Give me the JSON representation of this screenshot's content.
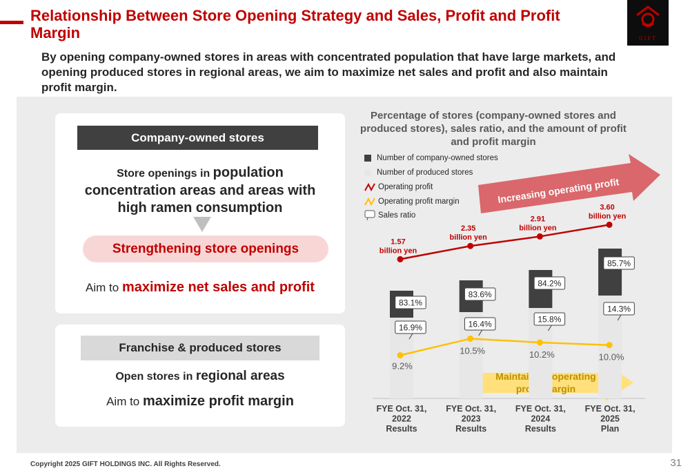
{
  "header": {
    "title": "Relationship Between Store Opening Strategy and Sales, Profit and Profit Margin",
    "subtitle": "By opening company-owned stores in areas with concentrated population that have large markets, and opening produced stores in regional areas, we aim to maximize net sales and profit and also maintain profit margin.",
    "logo_text": "GIFT"
  },
  "left": {
    "company": {
      "heading": "Company-owned stores",
      "line1_prefix": "Store openings in ",
      "line1_emph": "population",
      "line2": "concentration areas and areas with",
      "line3": "high ramen consumption",
      "pill": "Strengthening store openings",
      "aim_prefix": "Aim to ",
      "aim_emph": "maximize net sales and profit"
    },
    "franchise": {
      "heading": "Franchise & produced stores",
      "line1_prefix": "Open stores in ",
      "line1_emph": "regional areas",
      "aim_prefix": "Aim to ",
      "aim_emph": "maximize profit margin"
    }
  },
  "chart_title": "Percentage of stores (company-owned stores and produced stores), sales ratio, and the amount of profit and profit margin",
  "legend": {
    "company": "Number of company-owned stores",
    "produced": "Number of produced stores",
    "op_profit": "Operating profit",
    "op_margin": "Operating profit margin",
    "sales_ratio": "Sales ratio"
  },
  "arrows": {
    "increasing": "Increasing operating profit",
    "maintaining_l1": "Maintaining operating",
    "maintaining_l2": "profit margin"
  },
  "colors": {
    "accent": "#c00000",
    "company_bar": "#404040",
    "produced_bar": "#e7e7e7",
    "profit_line": "#c00000",
    "margin_line": "#ffc000"
  },
  "chart_data": {
    "type": "bar",
    "categories": [
      [
        "FYE Oct. 31,",
        "2022",
        "Results"
      ],
      [
        "FYE Oct. 31,",
        "2023",
        "Results"
      ],
      [
        "FYE Oct. 31,",
        "2024",
        "Results"
      ],
      [
        "FYE Oct. 31,",
        "2025",
        "Plan"
      ]
    ],
    "company_store_share_labels": [
      "83.1%",
      "83.6%",
      "84.2%",
      "85.7%"
    ],
    "produced_store_share_labels": [
      "16.9%",
      "16.4%",
      "15.8%",
      "14.3%"
    ],
    "operating_profit": {
      "name": "Operating profit",
      "values": [
        1.57,
        2.35,
        2.91,
        3.6
      ],
      "labels": [
        [
          "1.57",
          "billion yen"
        ],
        [
          "2.35",
          "billion yen"
        ],
        [
          "2.91",
          "billion yen"
        ],
        [
          "3.60",
          "billion yen"
        ]
      ]
    },
    "operating_profit_margin": {
      "name": "Operating profit margin",
      "values": [
        9.2,
        10.5,
        10.2,
        10.0
      ],
      "labels": [
        "9.2%",
        "10.5%",
        "10.2%",
        "10.0%"
      ]
    }
  },
  "footer": {
    "copyright": "Copyright 2025 GIFT HOLDINGS INC. All Rights Reserved.",
    "page": "31"
  }
}
